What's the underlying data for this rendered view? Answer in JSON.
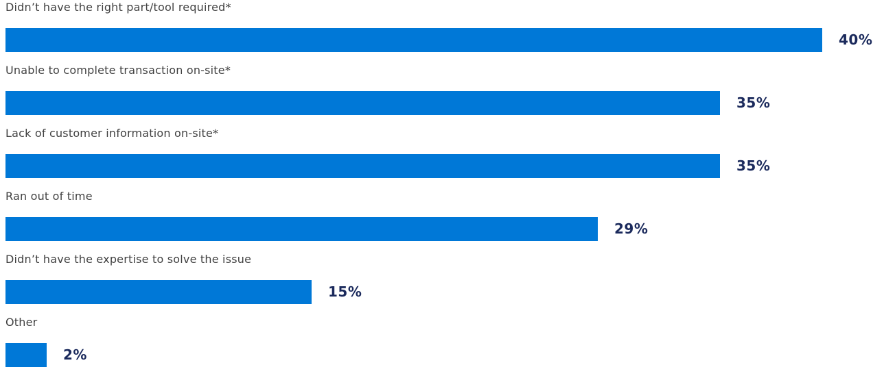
{
  "colors": {
    "bar": "#0078d7",
    "value_label": "#1b2a5c",
    "category_label": "#404040"
  },
  "chart_data": {
    "type": "bar",
    "orientation": "horizontal",
    "title": "",
    "xlabel": "",
    "ylabel": "",
    "xlim": [
      0,
      40
    ],
    "grid": false,
    "categories": [
      "Didn’t have the right part/tool required*",
      "Unable to complete transaction on-site*",
      "Lack of customer information on-site*",
      "Ran out of time",
      "Didn’t have the expertise to solve the issue",
      "Other"
    ],
    "values": [
      40,
      35,
      35,
      29,
      15,
      2
    ],
    "value_labels": [
      "40%",
      "35%",
      "35%",
      "29%",
      "15%",
      "2%"
    ]
  }
}
